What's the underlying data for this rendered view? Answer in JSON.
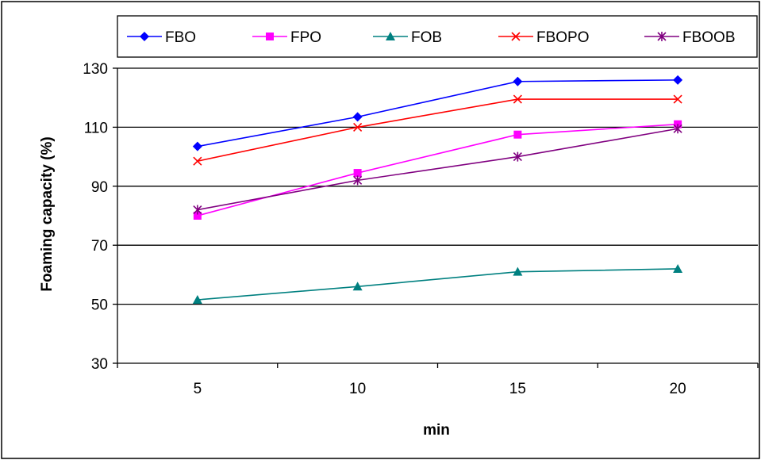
{
  "chart_data": {
    "type": "line",
    "categories": [
      "5",
      "10",
      "15",
      "20"
    ],
    "xlabel": "min",
    "ylabel": "Foaming capacity (%)",
    "ylim": [
      30,
      130
    ],
    "yticks": [
      30,
      50,
      70,
      90,
      110,
      130
    ],
    "grid": "horizontal",
    "legend": "top",
    "series": [
      {
        "name": "FBO",
        "values": [
          103.5,
          113.5,
          125.5,
          126
        ],
        "color": "#0000ff",
        "marker": "diamond"
      },
      {
        "name": "FPO",
        "values": [
          80,
          94.5,
          107.5,
          111
        ],
        "color": "#ff00ff",
        "marker": "square"
      },
      {
        "name": "FOB",
        "values": [
          51.5,
          56,
          61,
          62
        ],
        "color": "#008080",
        "marker": "triangle"
      },
      {
        "name": "FBOPO",
        "values": [
          98.5,
          110,
          119.5,
          119.5
        ],
        "color": "#ff0000",
        "marker": "x"
      },
      {
        "name": "FBOOB",
        "values": [
          82,
          92,
          100,
          109.5
        ],
        "color": "#800080",
        "marker": "star"
      }
    ]
  }
}
